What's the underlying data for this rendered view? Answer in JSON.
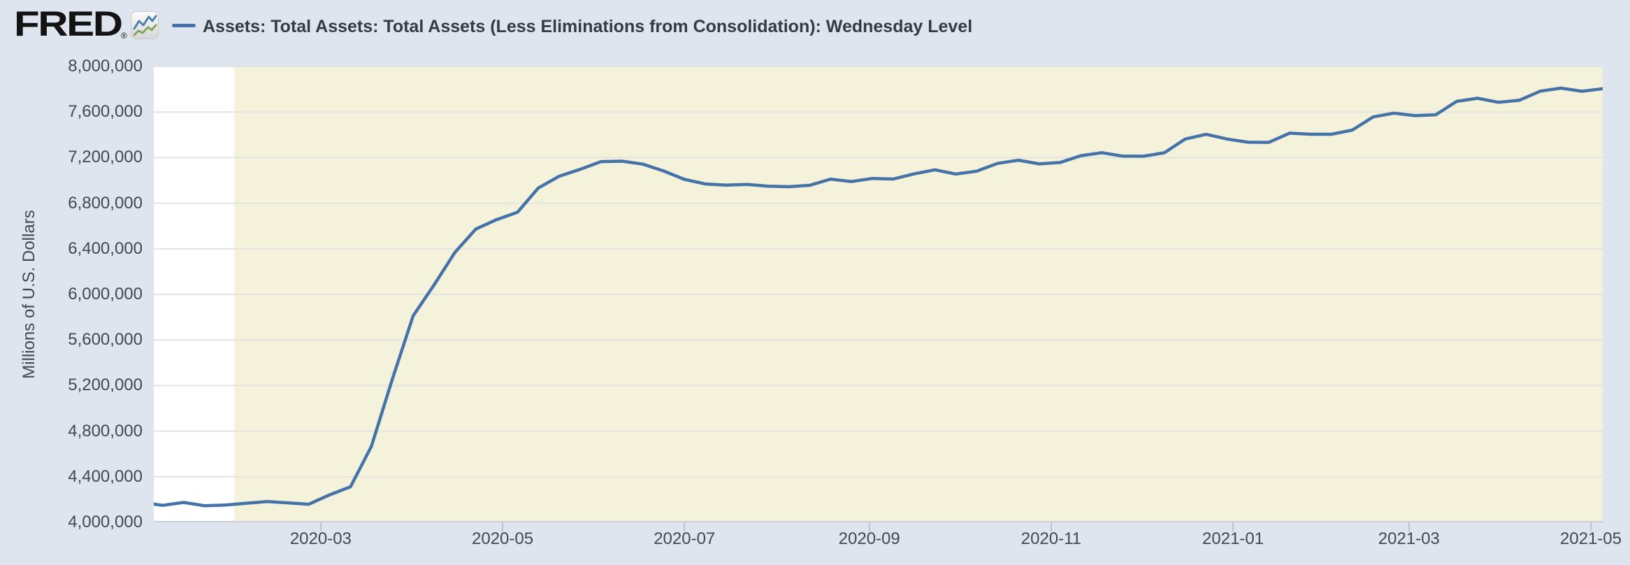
{
  "header": {
    "logo_text": "FRED",
    "logo_registered": "®",
    "series_title": "Assets: Total Assets: Total Assets (Less Eliminations from Consolidation): Wednesday Level"
  },
  "colors": {
    "page_background": "#dee5ee",
    "plot_background": "#ffffff",
    "recession_band": "#f4f2da",
    "line": "#4573a7",
    "gridline": "#e4e4e0",
    "axis_line": "#c9d0d9",
    "tick_mark": "#b9c6da",
    "axis_text": "#45484e",
    "title_text": "#333b43",
    "logo_icon_blue": "#4f81ad",
    "logo_icon_green": "#7fa65a"
  },
  "y_axis": {
    "title": "Millions of U.S. Dollars",
    "ticks": [
      8000000,
      7600000,
      7200000,
      6800000,
      6400000,
      6000000,
      5600000,
      5200000,
      4800000,
      4400000,
      4000000
    ],
    "tick_labels": [
      "8,000,000",
      "7,600,000",
      "7,200,000",
      "6,800,000",
      "6,400,000",
      "6,000,000",
      "5,600,000",
      "5,200,000",
      "4,800,000",
      "4,400,000",
      "4,000,000"
    ]
  },
  "x_axis": {
    "tick_labels": [
      "2020-03",
      "2020-05",
      "2020-07",
      "2020-09",
      "2020-11",
      "2021-01",
      "2021-03",
      "2021-05"
    ]
  },
  "chart_data": {
    "type": "line",
    "title": "Assets: Total Assets: Total Assets (Less Eliminations from Consolidation): Wednesday Level",
    "xlabel": "",
    "ylabel": "Millions of U.S. Dollars",
    "ylim": [
      4000000,
      8000000
    ],
    "x_domain": [
      "2020-01-05",
      "2021-05-05"
    ],
    "grid": "horizontal",
    "legend_position": "top-left",
    "highlight_band": {
      "start": "2020-02-01",
      "end": "2021-05-05"
    },
    "x": [
      "2020-01-01",
      "2020-01-08",
      "2020-01-15",
      "2020-01-22",
      "2020-01-29",
      "2020-02-05",
      "2020-02-12",
      "2020-02-19",
      "2020-02-26",
      "2020-03-04",
      "2020-03-11",
      "2020-03-18",
      "2020-03-25",
      "2020-04-01",
      "2020-04-08",
      "2020-04-15",
      "2020-04-22",
      "2020-04-29",
      "2020-05-06",
      "2020-05-13",
      "2020-05-20",
      "2020-05-27",
      "2020-06-03",
      "2020-06-10",
      "2020-06-17",
      "2020-06-24",
      "2020-07-01",
      "2020-07-08",
      "2020-07-15",
      "2020-07-22",
      "2020-07-29",
      "2020-08-05",
      "2020-08-12",
      "2020-08-19",
      "2020-08-26",
      "2020-09-02",
      "2020-09-09",
      "2020-09-16",
      "2020-09-23",
      "2020-09-30",
      "2020-10-07",
      "2020-10-14",
      "2020-10-21",
      "2020-10-28",
      "2020-11-04",
      "2020-11-11",
      "2020-11-18",
      "2020-11-25",
      "2020-12-02",
      "2020-12-09",
      "2020-12-16",
      "2020-12-23",
      "2020-12-30",
      "2021-01-06",
      "2021-01-13",
      "2021-01-20",
      "2021-01-27",
      "2021-02-03",
      "2021-02-10",
      "2021-02-17",
      "2021-02-24",
      "2021-03-03",
      "2021-03-10",
      "2021-03-17",
      "2021-03-24",
      "2021-03-31",
      "2021-04-07",
      "2021-04-14",
      "2021-04-21",
      "2021-04-28",
      "2021-05-05"
    ],
    "values": [
      4174000,
      4149000,
      4175000,
      4146000,
      4152000,
      4167000,
      4183000,
      4171000,
      4159000,
      4242000,
      4312000,
      4668000,
      5254000,
      5812000,
      6083000,
      6368000,
      6573000,
      6656000,
      6721000,
      6934000,
      7037000,
      7097000,
      7165000,
      7169000,
      7143000,
      7083000,
      7009000,
      6969000,
      6959000,
      6965000,
      6949000,
      6945000,
      6957000,
      7011000,
      6990000,
      7017000,
      7012000,
      7057000,
      7093000,
      7056000,
      7081000,
      7149000,
      7177000,
      7145000,
      7157000,
      7217000,
      7243000,
      7213000,
      7212000,
      7243000,
      7363000,
      7404000,
      7363000,
      7335000,
      7334000,
      7415000,
      7405000,
      7405000,
      7442000,
      7557000,
      7590000,
      7568000,
      7576000,
      7693000,
      7721000,
      7685000,
      7703000,
      7783000,
      7810000,
      7782000,
      7804000
    ]
  }
}
